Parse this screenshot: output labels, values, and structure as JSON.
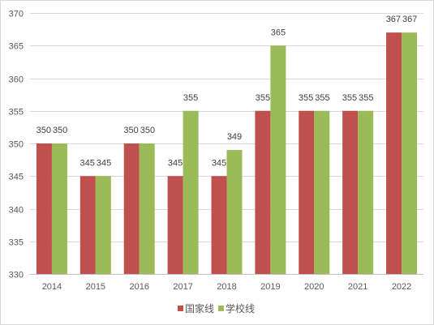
{
  "chart_data": {
    "type": "bar",
    "categories": [
      "2014",
      "2015",
      "2016",
      "2017",
      "2018",
      "2019",
      "2020",
      "2021",
      "2022"
    ],
    "series": [
      {
        "name": "国家线",
        "color": "#c0504d",
        "values": [
          350,
          345,
          350,
          345,
          345,
          355,
          355,
          355,
          367
        ]
      },
      {
        "name": "学校线",
        "color": "#9bbb59",
        "values": [
          350,
          345,
          350,
          355,
          349,
          365,
          355,
          355,
          367
        ]
      }
    ],
    "y_ticks": [
      "330",
      "335",
      "340",
      "345",
      "350",
      "355",
      "360",
      "365",
      "370"
    ],
    "ylim": [
      330,
      370
    ],
    "grid": true,
    "legend_position": "bottom",
    "title": "",
    "xlabel": "",
    "ylabel": ""
  }
}
